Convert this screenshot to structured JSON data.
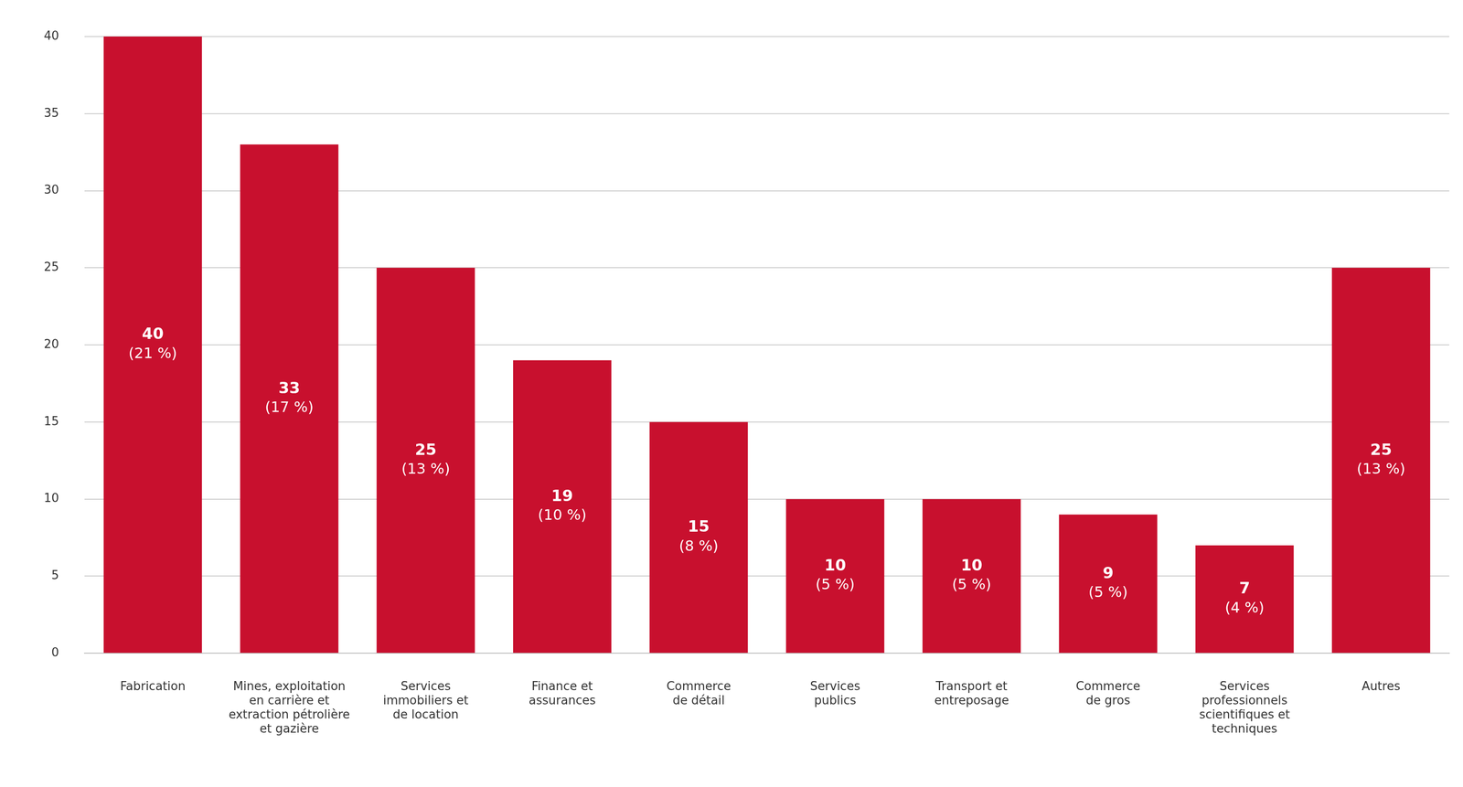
{
  "chart_data": {
    "type": "bar",
    "categories": [
      [
        "Fabrication"
      ],
      [
        "Mines, exploitation",
        "en carrière et",
        "extraction pétrolière",
        "et gazière"
      ],
      [
        "Services",
        "immobiliers et",
        "de location"
      ],
      [
        "Finance et",
        "assurances"
      ],
      [
        "Commerce",
        "de détail"
      ],
      [
        "Services",
        "publics"
      ],
      [
        "Transport et",
        "entreposage"
      ],
      [
        "Commerce",
        "de gros"
      ],
      [
        "Services",
        "professionnels",
        "scientifiques et",
        "techniques"
      ],
      [
        "Autres"
      ]
    ],
    "values": [
      40,
      33,
      25,
      19,
      15,
      10,
      10,
      9,
      7,
      25
    ],
    "share_labels": [
      "(21 %)",
      "(17 %)",
      "(13 %)",
      "(10 %)",
      "(8 %)",
      "(5 %)",
      "(5 %)",
      "(5 %)",
      "(4 %)",
      "(13 %)"
    ],
    "color": "#c8102e",
    "ylim": [
      0,
      40
    ],
    "yticks": [
      0,
      5,
      10,
      15,
      20,
      25,
      30,
      35,
      40
    ],
    "grid": true,
    "data_labels": true
  }
}
